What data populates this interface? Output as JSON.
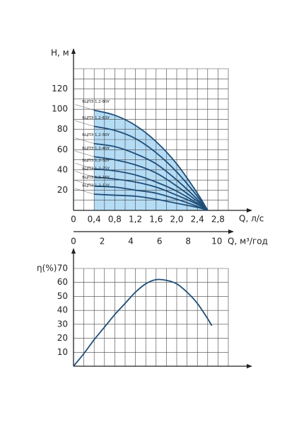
{
  "chart_data": [
    {
      "type": "line",
      "y_label": "H, м",
      "x_label": "Q, л/с",
      "x2_label": "Q, м³/год",
      "xlim": [
        0,
        3.0
      ],
      "ylim": [
        0,
        140
      ],
      "x2lim": [
        0,
        10.8
      ],
      "xticks": [
        0,
        {
          "value": 0.4,
          "label": "0,4"
        },
        {
          "value": 0.8,
          "label": "0,8"
        },
        {
          "value": 1.2,
          "label": "1,2"
        },
        {
          "value": 1.6,
          "label": "1,6"
        },
        {
          "value": 2.0,
          "label": "2,0"
        },
        {
          "value": 2.4,
          "label": "2,4"
        },
        {
          "value": 2.8,
          "label": "2,8"
        }
      ],
      "yticks": [
        20,
        40,
        60,
        80,
        100,
        120
      ],
      "x2ticks": [
        0,
        2,
        4,
        6,
        8,
        10
      ],
      "x_grid": [
        0,
        0.2,
        0.4,
        0.6,
        0.8,
        1.0,
        1.2,
        1.4,
        1.6,
        1.8,
        2.0,
        2.2,
        2.4,
        2.6,
        2.8,
        3.0
      ],
      "y_grid": [
        0,
        10,
        20,
        30,
        40,
        50,
        60,
        70,
        80,
        90,
        100,
        110,
        120,
        130,
        140
      ],
      "fill": "#b5dcf5",
      "x": [
        0.4,
        0.8,
        1.2,
        1.6,
        2.0,
        2.4,
        2.6
      ],
      "series": [
        {
          "name": "БЦПЭ 1,2-80У",
          "color": "#1f4e79",
          "values": [
            99,
            94,
            84,
            68,
            46,
            17,
            0
          ]
        },
        {
          "name": "БЦПЭ 1,2-63У",
          "color": "#1f4e79",
          "values": [
            83,
            79,
            71,
            57,
            38,
            14,
            0
          ]
        },
        {
          "name": "БЦПЭ 1,2-50У",
          "color": "#1f4e79",
          "values": [
            66,
            63,
            56,
            46,
            30,
            11,
            0
          ]
        },
        {
          "name": "БЦПЭ 1,2-40У",
          "color": "#1f4e79",
          "values": [
            53,
            50,
            45,
            37,
            24,
            9,
            0
          ]
        },
        {
          "name": "БЦПЭ 1,2-32У",
          "color": "#1f4e79",
          "values": [
            41,
            39,
            35,
            28,
            19,
            7,
            0
          ]
        },
        {
          "name": "БЦПЭ 1,2-25У",
          "color": "#1f4e79",
          "values": [
            33,
            31,
            28,
            23,
            15,
            6,
            0
          ]
        },
        {
          "name": "БЦПЭ 1,2-16У",
          "color": "#1f4e79",
          "values": [
            24,
            23,
            20,
            17,
            11,
            4,
            0
          ]
        },
        {
          "name": "БЦПЭ 1,2-12У",
          "color": "#1f4e79",
          "values": [
            16,
            15,
            14,
            11,
            7,
            3,
            0
          ]
        }
      ]
    },
    {
      "type": "line",
      "y_label": "η(%)",
      "xlim": [
        0,
        3.0
      ],
      "ylim": [
        0,
        70
      ],
      "yticks": [
        10,
        20,
        30,
        40,
        50,
        60,
        70
      ],
      "x_grid": [
        0,
        0.2,
        0.4,
        0.6,
        0.8,
        1.0,
        1.2,
        1.4,
        1.6,
        1.8,
        2.0,
        2.2,
        2.4,
        2.6,
        2.8,
        3.0
      ],
      "y_grid": [
        0,
        10,
        20,
        30,
        40,
        50,
        60,
        70
      ],
      "x": [
        0,
        0.2,
        0.4,
        0.6,
        0.8,
        1.0,
        1.2,
        1.4,
        1.6,
        1.8,
        2.0,
        2.2,
        2.4,
        2.6,
        2.68
      ],
      "series": [
        {
          "color": "#1f4e79",
          "values": [
            0,
            9,
            19,
            28,
            37,
            45,
            53,
            59,
            62,
            61.5,
            59,
            53,
            45,
            34,
            29
          ]
        }
      ]
    }
  ]
}
